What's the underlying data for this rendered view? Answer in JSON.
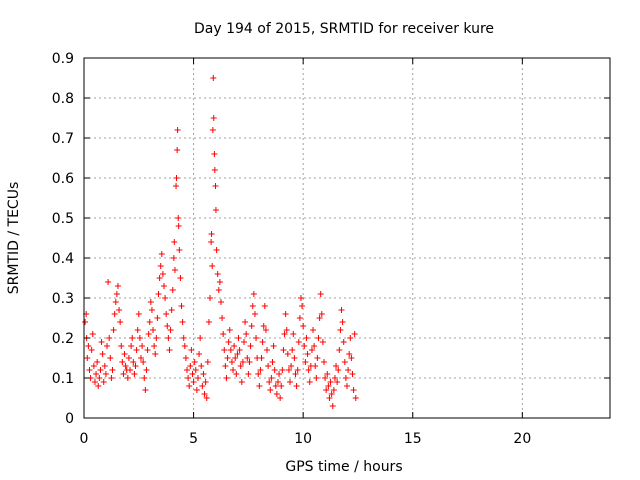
{
  "chart_data": {
    "type": "scatter",
    "title": "Day 194 of 2015, SRMTID for receiver kure",
    "xlabel": "GPS time / hours",
    "ylabel": "SRMTID / TECUs",
    "xlim": [
      0,
      24
    ],
    "ylim": [
      0,
      0.9
    ],
    "x_ticks": [
      0,
      5,
      10,
      15,
      20
    ],
    "x_tick_labels": [
      "0",
      "5",
      "10",
      "15",
      "20"
    ],
    "y_ticks": [
      0,
      0.1,
      0.2,
      0.3,
      0.4,
      0.5,
      0.6,
      0.7,
      0.8,
      0.9
    ],
    "y_tick_labels": [
      "0",
      "0.1",
      "0.2",
      "0.3",
      "0.4",
      "0.5",
      "0.6",
      "0.7",
      "0.8",
      "0.9"
    ],
    "grid": true,
    "marker": "+",
    "series": [
      {
        "name": "SRMTID",
        "color": "#ff0000",
        "points": [
          [
            0.05,
            0.24
          ],
          [
            0.1,
            0.26
          ],
          [
            0.12,
            0.2
          ],
          [
            0.15,
            0.15
          ],
          [
            0.2,
            0.18
          ],
          [
            0.25,
            0.12
          ],
          [
            0.3,
            0.1
          ],
          [
            0.35,
            0.17
          ],
          [
            0.4,
            0.21
          ],
          [
            0.45,
            0.13
          ],
          [
            0.5,
            0.09
          ],
          [
            0.55,
            0.11
          ],
          [
            0.6,
            0.14
          ],
          [
            0.65,
            0.08
          ],
          [
            0.7,
            0.1
          ],
          [
            0.75,
            0.12
          ],
          [
            0.8,
            0.19
          ],
          [
            0.85,
            0.16
          ],
          [
            0.9,
            0.09
          ],
          [
            0.95,
            0.13
          ],
          [
            1.0,
            0.11
          ],
          [
            1.05,
            0.18
          ],
          [
            1.1,
            0.34
          ],
          [
            1.15,
            0.2
          ],
          [
            1.2,
            0.15
          ],
          [
            1.25,
            0.1
          ],
          [
            1.3,
            0.12
          ],
          [
            1.35,
            0.22
          ],
          [
            1.4,
            0.26
          ],
          [
            1.45,
            0.29
          ],
          [
            1.5,
            0.31
          ],
          [
            1.55,
            0.33
          ],
          [
            1.6,
            0.27
          ],
          [
            1.65,
            0.24
          ],
          [
            1.7,
            0.18
          ],
          [
            1.75,
            0.14
          ],
          [
            1.8,
            0.11
          ],
          [
            1.85,
            0.16
          ],
          [
            1.9,
            0.13
          ],
          [
            1.95,
            0.12
          ],
          [
            2.0,
            0.1
          ],
          [
            2.05,
            0.15
          ],
          [
            2.1,
            0.12
          ],
          [
            2.15,
            0.18
          ],
          [
            2.2,
            0.2
          ],
          [
            2.25,
            0.14
          ],
          [
            2.3,
            0.11
          ],
          [
            2.35,
            0.13
          ],
          [
            2.4,
            0.17
          ],
          [
            2.45,
            0.22
          ],
          [
            2.5,
            0.26
          ],
          [
            2.55,
            0.2
          ],
          [
            2.6,
            0.15
          ],
          [
            2.65,
            0.18
          ],
          [
            2.7,
            0.14
          ],
          [
            2.75,
            0.1
          ],
          [
            2.8,
            0.07
          ],
          [
            2.85,
            0.12
          ],
          [
            2.9,
            0.17
          ],
          [
            2.95,
            0.21
          ],
          [
            3.0,
            0.24
          ],
          [
            3.05,
            0.29
          ],
          [
            3.1,
            0.27
          ],
          [
            3.15,
            0.22
          ],
          [
            3.2,
            0.18
          ],
          [
            3.25,
            0.16
          ],
          [
            3.3,
            0.2
          ],
          [
            3.35,
            0.25
          ],
          [
            3.4,
            0.31
          ],
          [
            3.45,
            0.35
          ],
          [
            3.5,
            0.38
          ],
          [
            3.55,
            0.41
          ],
          [
            3.6,
            0.36
          ],
          [
            3.65,
            0.33
          ],
          [
            3.7,
            0.3
          ],
          [
            3.75,
            0.26
          ],
          [
            3.8,
            0.23
          ],
          [
            3.85,
            0.2
          ],
          [
            3.9,
            0.17
          ],
          [
            3.95,
            0.22
          ],
          [
            4.0,
            0.27
          ],
          [
            4.05,
            0.32
          ],
          [
            4.1,
            0.4
          ],
          [
            4.12,
            0.44
          ],
          [
            4.15,
            0.37
          ],
          [
            4.2,
            0.58
          ],
          [
            4.22,
            0.6
          ],
          [
            4.25,
            0.67
          ],
          [
            4.27,
            0.72
          ],
          [
            4.3,
            0.5
          ],
          [
            4.32,
            0.48
          ],
          [
            4.35,
            0.42
          ],
          [
            4.4,
            0.35
          ],
          [
            4.45,
            0.28
          ],
          [
            4.5,
            0.24
          ],
          [
            4.55,
            0.2
          ],
          [
            4.6,
            0.18
          ],
          [
            4.65,
            0.15
          ],
          [
            4.7,
            0.12
          ],
          [
            4.75,
            0.1
          ],
          [
            4.8,
            0.08
          ],
          [
            4.85,
            0.13
          ],
          [
            4.9,
            0.17
          ],
          [
            4.95,
            0.11
          ],
          [
            5.0,
            0.09
          ],
          [
            5.05,
            0.14
          ],
          [
            5.1,
            0.12
          ],
          [
            5.15,
            0.07
          ],
          [
            5.2,
            0.1
          ],
          [
            5.25,
            0.16
          ],
          [
            5.3,
            0.2
          ],
          [
            5.35,
            0.13
          ],
          [
            5.4,
            0.08
          ],
          [
            5.45,
            0.11
          ],
          [
            5.5,
            0.06
          ],
          [
            5.55,
            0.09
          ],
          [
            5.6,
            0.05
          ],
          [
            5.65,
            0.14
          ],
          [
            5.7,
            0.24
          ],
          [
            5.75,
            0.3
          ],
          [
            5.8,
            0.44
          ],
          [
            5.82,
            0.46
          ],
          [
            5.85,
            0.38
          ],
          [
            5.88,
            0.72
          ],
          [
            5.9,
            0.85
          ],
          [
            5.92,
            0.75
          ],
          [
            5.95,
            0.66
          ],
          [
            5.97,
            0.62
          ],
          [
            6.0,
            0.58
          ],
          [
            6.02,
            0.52
          ],
          [
            6.05,
            0.42
          ],
          [
            6.1,
            0.36
          ],
          [
            6.15,
            0.32
          ],
          [
            6.2,
            0.34
          ],
          [
            6.25,
            0.29
          ],
          [
            6.3,
            0.25
          ],
          [
            6.35,
            0.21
          ],
          [
            6.4,
            0.17
          ],
          [
            6.45,
            0.13
          ],
          [
            6.5,
            0.1
          ],
          [
            6.55,
            0.15
          ],
          [
            6.6,
            0.19
          ],
          [
            6.65,
            0.22
          ],
          [
            6.7,
            0.17
          ],
          [
            6.75,
            0.14
          ],
          [
            6.8,
            0.12
          ],
          [
            6.85,
            0.18
          ],
          [
            6.9,
            0.15
          ],
          [
            6.95,
            0.11
          ],
          [
            7.0,
            0.16
          ],
          [
            7.05,
            0.2
          ],
          [
            7.1,
            0.17
          ],
          [
            7.15,
            0.13
          ],
          [
            7.2,
            0.09
          ],
          [
            7.25,
            0.14
          ],
          [
            7.3,
            0.19
          ],
          [
            7.35,
            0.24
          ],
          [
            7.4,
            0.21
          ],
          [
            7.45,
            0.15
          ],
          [
            7.5,
            0.11
          ],
          [
            7.55,
            0.14
          ],
          [
            7.6,
            0.18
          ],
          [
            7.65,
            0.23
          ],
          [
            7.7,
            0.28
          ],
          [
            7.75,
            0.31
          ],
          [
            7.8,
            0.26
          ],
          [
            7.85,
            0.2
          ],
          [
            7.9,
            0.15
          ],
          [
            7.95,
            0.11
          ],
          [
            8.0,
            0.08
          ],
          [
            8.05,
            0.12
          ],
          [
            8.1,
            0.15
          ],
          [
            8.15,
            0.19
          ],
          [
            8.2,
            0.23
          ],
          [
            8.25,
            0.28
          ],
          [
            8.3,
            0.22
          ],
          [
            8.35,
            0.17
          ],
          [
            8.4,
            0.13
          ],
          [
            8.45,
            0.09
          ],
          [
            8.5,
            0.07
          ],
          [
            8.55,
            0.1
          ],
          [
            8.6,
            0.14
          ],
          [
            8.65,
            0.18
          ],
          [
            8.7,
            0.12
          ],
          [
            8.75,
            0.08
          ],
          [
            8.8,
            0.06
          ],
          [
            8.85,
            0.09
          ],
          [
            8.9,
            0.11
          ],
          [
            8.95,
            0.05
          ],
          [
            9.0,
            0.08
          ],
          [
            9.05,
            0.12
          ],
          [
            9.1,
            0.17
          ],
          [
            9.15,
            0.21
          ],
          [
            9.2,
            0.26
          ],
          [
            9.25,
            0.22
          ],
          [
            9.3,
            0.16
          ],
          [
            9.35,
            0.12
          ],
          [
            9.4,
            0.09
          ],
          [
            9.45,
            0.13
          ],
          [
            9.5,
            0.17
          ],
          [
            9.55,
            0.21
          ],
          [
            9.6,
            0.15
          ],
          [
            9.65,
            0.11
          ],
          [
            9.7,
            0.08
          ],
          [
            9.75,
            0.12
          ],
          [
            9.8,
            0.19
          ],
          [
            9.85,
            0.25
          ],
          [
            9.9,
            0.3
          ],
          [
            9.95,
            0.28
          ],
          [
            10.0,
            0.23
          ],
          [
            10.05,
            0.18
          ],
          [
            10.1,
            0.14
          ],
          [
            10.15,
            0.2
          ],
          [
            10.2,
            0.16
          ],
          [
            10.25,
            0.12
          ],
          [
            10.3,
            0.09
          ],
          [
            10.35,
            0.13
          ],
          [
            10.4,
            0.17
          ],
          [
            10.45,
            0.22
          ],
          [
            10.5,
            0.18
          ],
          [
            10.55,
            0.13
          ],
          [
            10.6,
            0.1
          ],
          [
            10.65,
            0.15
          ],
          [
            10.7,
            0.2
          ],
          [
            10.75,
            0.25
          ],
          [
            10.8,
            0.31
          ],
          [
            10.85,
            0.26
          ],
          [
            10.9,
            0.19
          ],
          [
            10.95,
            0.14
          ],
          [
            11.0,
            0.1
          ],
          [
            11.05,
            0.07
          ],
          [
            11.1,
            0.11
          ],
          [
            11.15,
            0.08
          ],
          [
            11.2,
            0.05
          ],
          [
            11.25,
            0.09
          ],
          [
            11.3,
            0.06
          ],
          [
            11.35,
            0.03
          ],
          [
            11.4,
            0.07
          ],
          [
            11.45,
            0.1
          ],
          [
            11.5,
            0.13
          ],
          [
            11.55,
            0.09
          ],
          [
            11.6,
            0.12
          ],
          [
            11.65,
            0.17
          ],
          [
            11.7,
            0.22
          ],
          [
            11.75,
            0.27
          ],
          [
            11.8,
            0.24
          ],
          [
            11.85,
            0.19
          ],
          [
            11.9,
            0.14
          ],
          [
            11.95,
            0.1
          ],
          [
            12.0,
            0.08
          ],
          [
            12.05,
            0.12
          ],
          [
            12.1,
            0.16
          ],
          [
            12.15,
            0.2
          ],
          [
            12.2,
            0.15
          ],
          [
            12.25,
            0.11
          ],
          [
            12.3,
            0.07
          ],
          [
            12.35,
            0.21
          ],
          [
            12.4,
            0.05
          ]
        ]
      }
    ]
  }
}
